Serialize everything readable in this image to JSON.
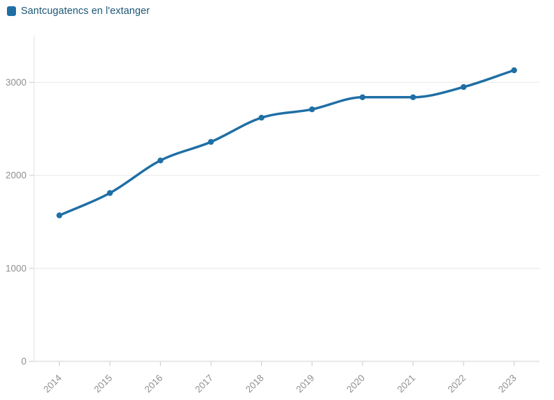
{
  "legend": {
    "label": "Santcugatencs en l'extanger"
  },
  "colors": {
    "series": "#1f6fa5",
    "legend_text": "#1a5674",
    "axis_label": "#8f8f8f",
    "grid": "#ececec",
    "axis_line": "#e7e7e7",
    "tick": "#d2d2d2",
    "background": "#ffffff"
  },
  "chart_data": {
    "type": "line",
    "title": "",
    "xlabel": "",
    "ylabel": "",
    "x": [
      "2014",
      "2015",
      "2016",
      "2017",
      "2018",
      "2019",
      "2020",
      "2021",
      "2022",
      "2023"
    ],
    "series": [
      {
        "name": "Santcugatencs en l'extanger",
        "values": [
          1570,
          1810,
          2160,
          2360,
          2620,
          2710,
          2840,
          2840,
          2950,
          3130
        ]
      }
    ],
    "ylim": [
      0,
      3500
    ],
    "yticks": [
      0,
      1000,
      2000,
      3000
    ],
    "grid": "horizontal-only",
    "legend_position": "top-left",
    "marker": "circle",
    "line_style": "smooth-monotone",
    "x_label_rotation": -45
  }
}
